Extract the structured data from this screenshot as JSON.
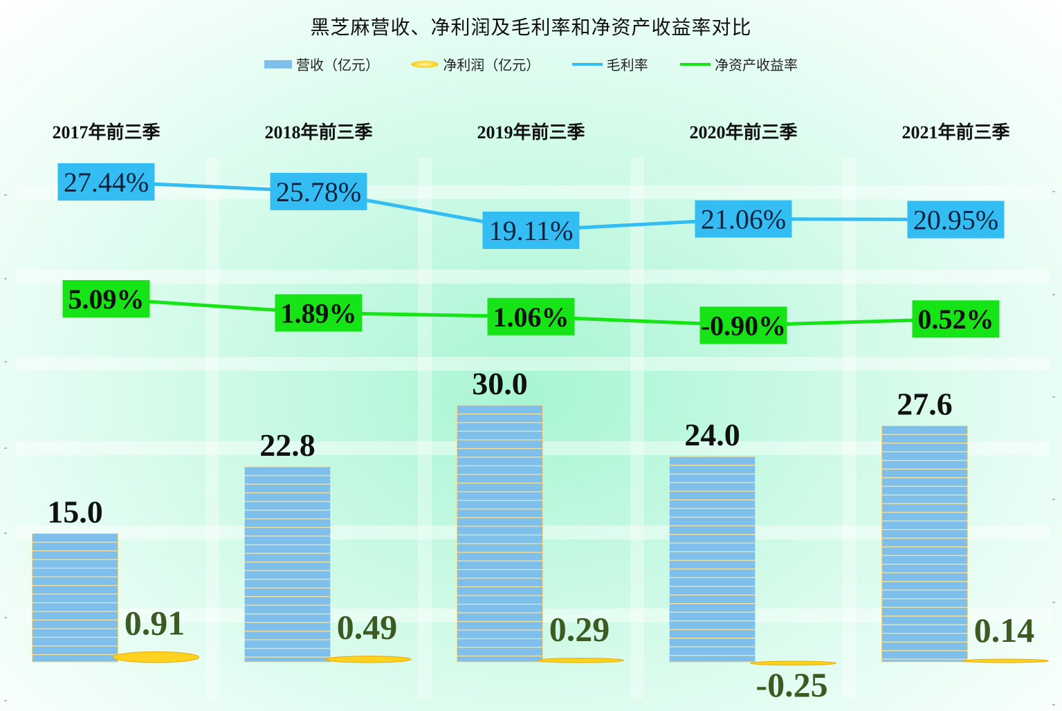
{
  "chart_data": {
    "type": "bar",
    "title": "黑芝麻营收、净利润及毛利率和净资产收益率对比",
    "categories": [
      "2017年前三季",
      "2018年前三季",
      "2019年前三季",
      "2020年前三季",
      "2021年前三季"
    ],
    "legend_position": "top",
    "series": [
      {
        "name": "营收（亿元）",
        "kind": "bar",
        "color": "#7fbfec",
        "values": [
          15.0,
          22.8,
          30.0,
          24.0,
          27.6
        ],
        "labels": [
          "15.0",
          "22.8",
          "30.0",
          "24.0",
          "27.6"
        ]
      },
      {
        "name": "净利润（亿元）",
        "kind": "bar",
        "color": "#ffd21f",
        "values": [
          0.91,
          0.49,
          0.29,
          -0.25,
          0.14
        ],
        "labels": [
          "0.91",
          "0.49",
          "0.29",
          "-0.25",
          "0.14"
        ]
      },
      {
        "name": "毛利率",
        "kind": "line",
        "color": "#33bdf2",
        "values": [
          27.44,
          25.78,
          19.11,
          21.06,
          20.95
        ],
        "labels": [
          "27.44%",
          "25.78%",
          "19.11%",
          "21.06%",
          "20.95%"
        ]
      },
      {
        "name": "净资产收益率",
        "kind": "line",
        "color": "#16e416",
        "values": [
          5.09,
          1.89,
          1.06,
          -0.9,
          0.52
        ],
        "labels": [
          "5.09%",
          "1.89%",
          "1.06%",
          "-0.90%",
          "0.52%"
        ]
      }
    ],
    "grid": true
  }
}
